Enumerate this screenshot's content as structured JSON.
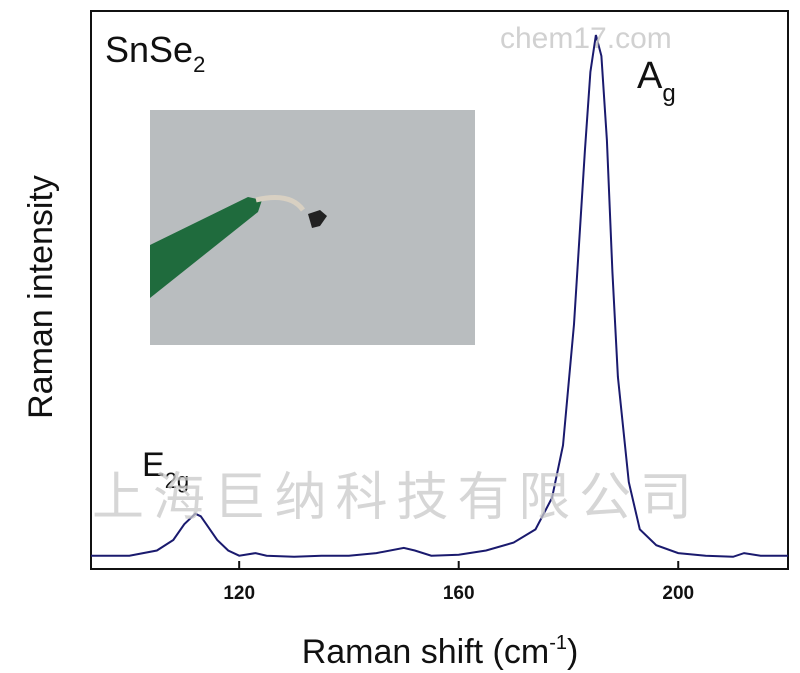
{
  "chart_data": {
    "type": "line",
    "title": "",
    "xlabel": "Raman shift (cm",
    "xlabel_sup": "-1",
    "xlabel_close": ")",
    "ylabel": "Raman intensity",
    "xlim": [
      93,
      220
    ],
    "ylim": [
      0,
      100
    ],
    "xticks": [
      120,
      160,
      200
    ],
    "yticks": [],
    "grid": false,
    "series": [
      {
        "color": "#1a1a6e",
        "x": [
          93,
          100,
          105,
          108,
          110,
          112,
          113,
          114,
          116,
          118,
          120,
          123,
          125,
          130,
          135,
          140,
          145,
          150,
          152,
          155,
          160,
          165,
          170,
          174,
          177,
          179,
          181,
          183,
          184,
          185,
          186,
          187,
          188,
          189,
          191,
          193,
          196,
          200,
          205,
          210,
          212,
          215,
          220
        ],
        "y": [
          1,
          1,
          2,
          4,
          7,
          9,
          8.5,
          7,
          4,
          2,
          1,
          1.5,
          1,
          0.8,
          1,
          1,
          1.5,
          2.5,
          2,
          1,
          1.2,
          2,
          3.5,
          6,
          12,
          22,
          45,
          78,
          93,
          100,
          96,
          80,
          55,
          35,
          15,
          6,
          3,
          1.5,
          1,
          0.8,
          1.5,
          1,
          1
        ]
      }
    ]
  },
  "annotations": {
    "compound": "SnSe",
    "compound_sub": "2",
    "peak_ag": "A",
    "peak_ag_sub": "g",
    "peak_e2g": "E",
    "peak_e2g_sub": "2g"
  },
  "inset": {
    "background": "#b8bcbf",
    "tweezer_color": "#1f6b3d"
  },
  "watermarks": {
    "top_right": "chem17.com",
    "center": "上海巨纳科技有限公司"
  }
}
